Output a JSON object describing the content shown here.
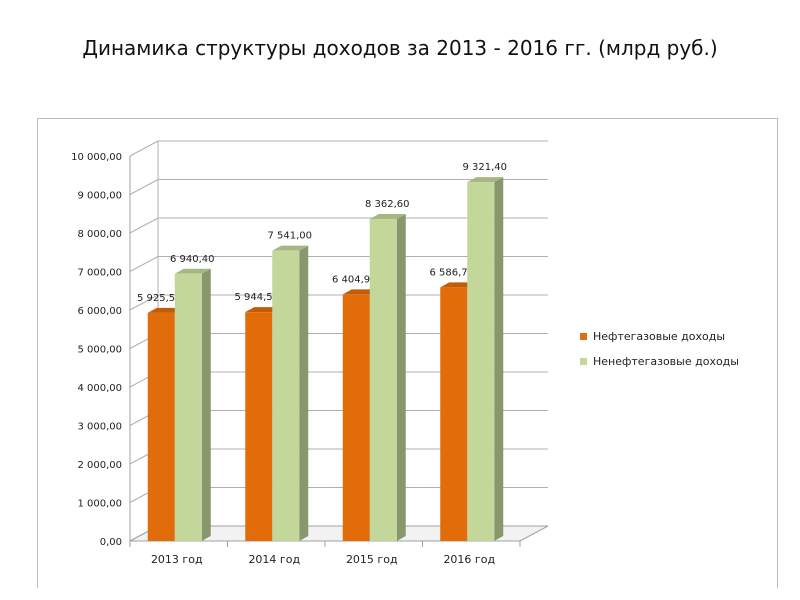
{
  "title": "Динамика структуры доходов за 2013 - 2016 гг. (млрд руб.)",
  "colors": {
    "oil_gas": "#e36c0a",
    "non_oil_gas": "#c4d79b"
  },
  "chart_data": {
    "type": "bar",
    "categories": [
      "2013 год",
      "2014 год",
      "2015 год",
      "2016 год"
    ],
    "series": [
      {
        "name": "Нефтегазовые доходы",
        "values": [
          5925.5,
          5944.5,
          6404.9,
          6586.7
        ],
        "labels": [
          "5 925,50",
          "5 944,50",
          "6 404,90",
          "6 586,70"
        ]
      },
      {
        "name": "Ненефтегазовые доходы",
        "values": [
          6940.4,
          7541.0,
          8362.6,
          9321.4
        ],
        "labels": [
          "6 940,40",
          "7 541,00",
          "8 362,60",
          "9 321,40"
        ]
      }
    ],
    "ylim": [
      0,
      10000
    ],
    "yticks": [
      0,
      1000,
      2000,
      3000,
      4000,
      5000,
      6000,
      7000,
      8000,
      9000,
      10000
    ],
    "ytick_labels": [
      "0,00",
      "1 000,00",
      "2 000,00",
      "3 000,00",
      "4 000,00",
      "5 000,00",
      "6 000,00",
      "7 000,00",
      "8 000,00",
      "9 000,00",
      "10 000,00"
    ],
    "grid": true,
    "legend": "right",
    "xlabel": "",
    "ylabel": ""
  }
}
